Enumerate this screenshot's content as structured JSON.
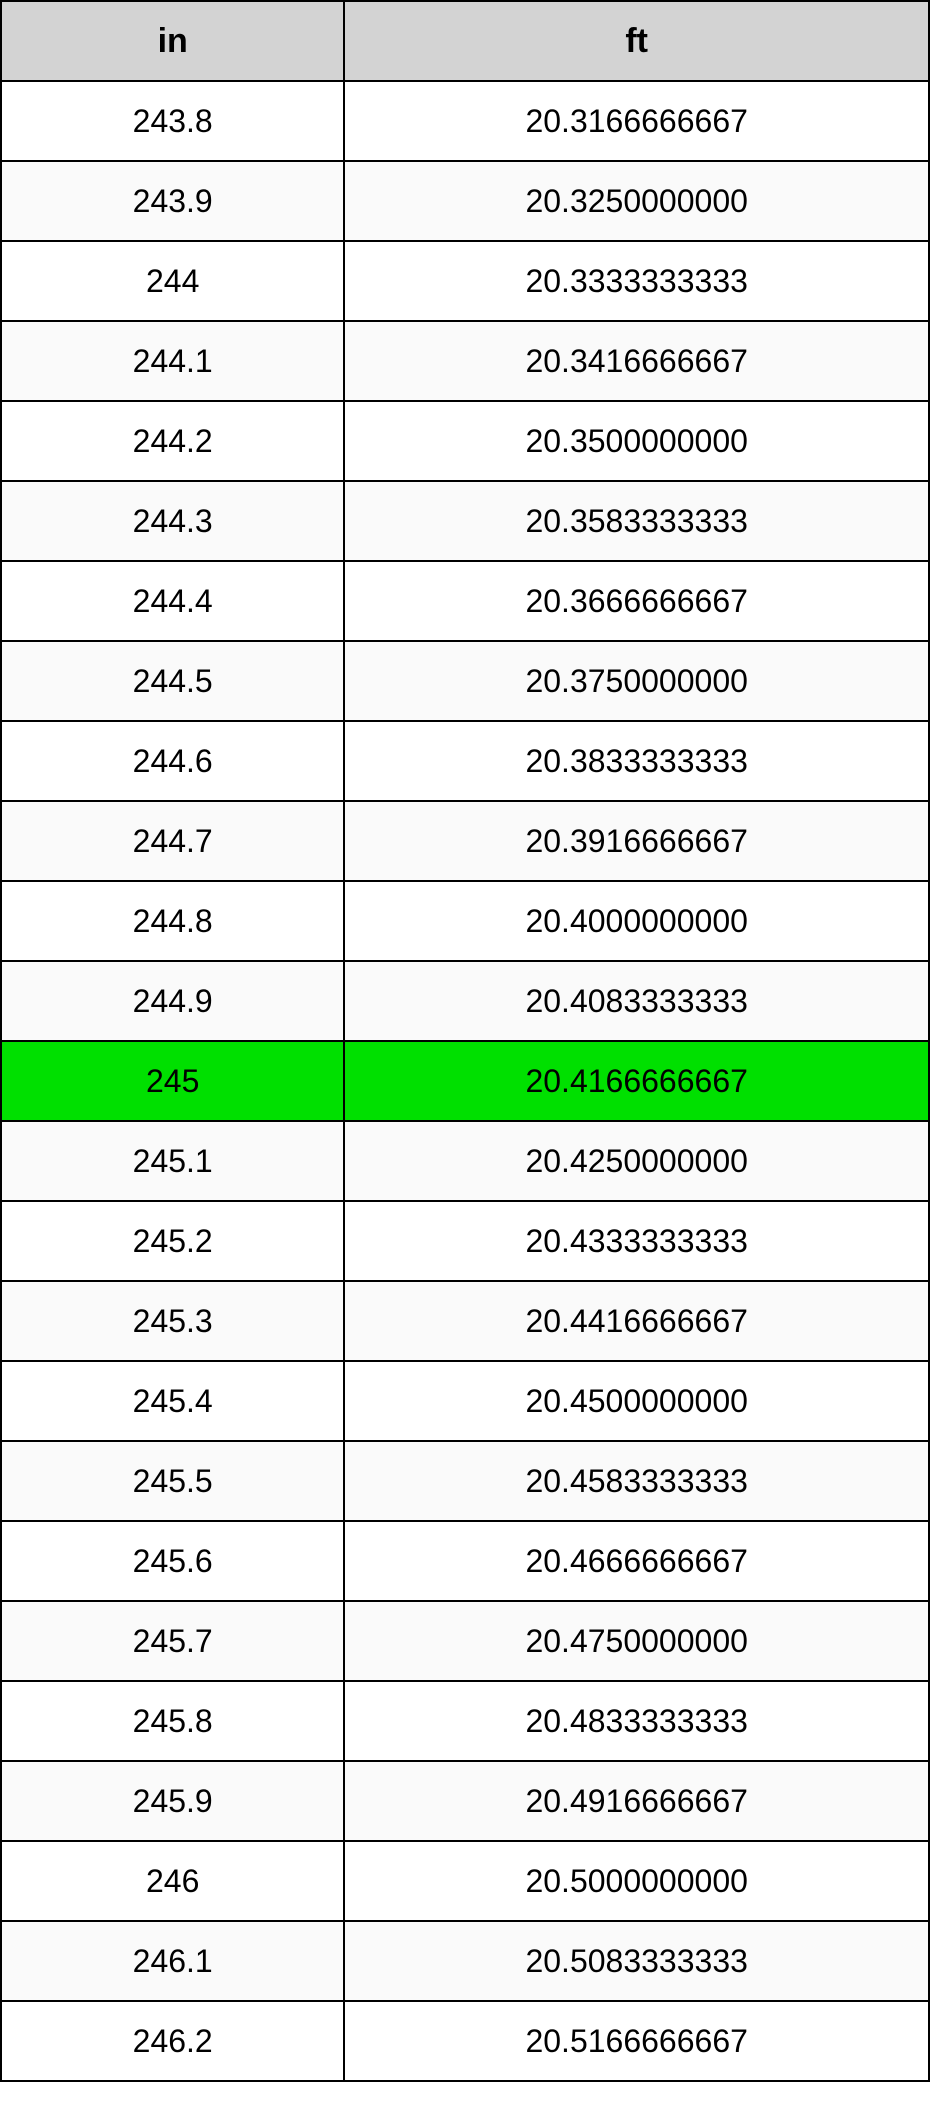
{
  "table": {
    "type": "table",
    "header_bg": "#d3d3d3",
    "row_bg_even": "#ffffff",
    "row_bg_odd": "#fafafa",
    "highlight_bg": "#00e000",
    "border_color": "#000000",
    "font_family": "Arial, Helvetica, sans-serif",
    "header_fontsize": 34,
    "cell_fontsize": 32,
    "columns": [
      {
        "key": "in",
        "label": "in",
        "width_pct": 37
      },
      {
        "key": "ft",
        "label": "ft",
        "width_pct": 63
      }
    ],
    "highlight_index": 12,
    "rows": [
      {
        "in": "243.8",
        "ft": "20.3166666667"
      },
      {
        "in": "243.9",
        "ft": "20.3250000000"
      },
      {
        "in": "244",
        "ft": "20.3333333333"
      },
      {
        "in": "244.1",
        "ft": "20.3416666667"
      },
      {
        "in": "244.2",
        "ft": "20.3500000000"
      },
      {
        "in": "244.3",
        "ft": "20.3583333333"
      },
      {
        "in": "244.4",
        "ft": "20.3666666667"
      },
      {
        "in": "244.5",
        "ft": "20.3750000000"
      },
      {
        "in": "244.6",
        "ft": "20.3833333333"
      },
      {
        "in": "244.7",
        "ft": "20.3916666667"
      },
      {
        "in": "244.8",
        "ft": "20.4000000000"
      },
      {
        "in": "244.9",
        "ft": "20.4083333333"
      },
      {
        "in": "245",
        "ft": "20.4166666667"
      },
      {
        "in": "245.1",
        "ft": "20.4250000000"
      },
      {
        "in": "245.2",
        "ft": "20.4333333333"
      },
      {
        "in": "245.3",
        "ft": "20.4416666667"
      },
      {
        "in": "245.4",
        "ft": "20.4500000000"
      },
      {
        "in": "245.5",
        "ft": "20.4583333333"
      },
      {
        "in": "245.6",
        "ft": "20.4666666667"
      },
      {
        "in": "245.7",
        "ft": "20.4750000000"
      },
      {
        "in": "245.8",
        "ft": "20.4833333333"
      },
      {
        "in": "245.9",
        "ft": "20.4916666667"
      },
      {
        "in": "246",
        "ft": "20.5000000000"
      },
      {
        "in": "246.1",
        "ft": "20.5083333333"
      },
      {
        "in": "246.2",
        "ft": "20.5166666667"
      }
    ]
  }
}
